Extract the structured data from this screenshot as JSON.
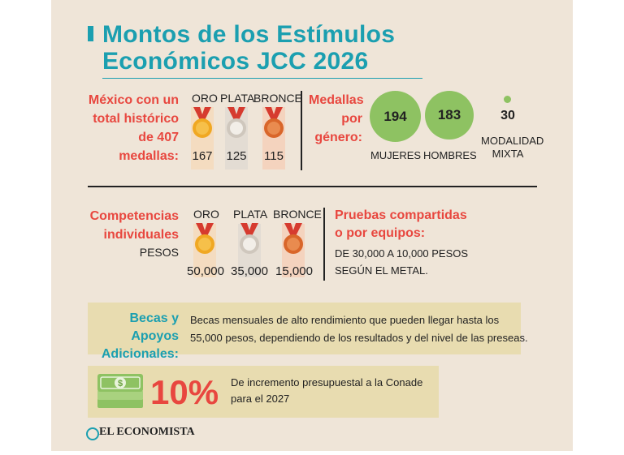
{
  "title": {
    "line1": "Montos de los Estímulos",
    "line2": "Económicos JCC 2026"
  },
  "medals_summary": {
    "intro": [
      "México con un",
      "total histórico",
      "de 407",
      "medallas:"
    ],
    "columns": [
      {
        "label": "ORO",
        "count": "167",
        "color": "#f0a823"
      },
      {
        "label": "PLATA",
        "count": "125",
        "color": "#d9d2c9"
      },
      {
        "label": "BRONCE",
        "count": "115",
        "color": "#e07a3c"
      }
    ]
  },
  "gender": {
    "heading": [
      "Medallas",
      "por",
      "género:"
    ],
    "women": {
      "value": "194",
      "label": "MUJERES"
    },
    "men": {
      "value": "183",
      "label": "HOMBRES"
    },
    "mixed": {
      "value": "30",
      "label_line1": "MODALIDAD",
      "label_line2": "MIXTA"
    },
    "circle_color": "#8ec262"
  },
  "individual": {
    "heading": [
      "Competencias",
      "individuales"
    ],
    "unit": "PESOS",
    "columns": [
      {
        "label": "ORO",
        "amount": "50,000"
      },
      {
        "label": "PLATA",
        "amount": "35,000"
      },
      {
        "label": "BRONCE",
        "amount": "15,000"
      }
    ]
  },
  "team": {
    "heading": [
      "Pruebas compartidas",
      "o por equipos:"
    ],
    "text": [
      "DE 30,000 A 10,000 PESOS",
      "SEGÚN EL METAL."
    ]
  },
  "scholarships": {
    "heading": [
      "Becas y Apoyos",
      "Adicionales:"
    ],
    "text": [
      "Becas mensuales de alto rendimiento que pueden llegar hasta los",
      "55,000 pesos, dependiendo de los resultados y del nivel de las preseas."
    ]
  },
  "budget": {
    "percent": "10%",
    "text": [
      "De incremento presupuestal a la Conade",
      "para el 2027"
    ],
    "icon": "money-bills-icon"
  },
  "brand": {
    "name": "EL ECONOMISTA"
  },
  "colors": {
    "accent_blue": "#1b9fb0",
    "accent_red": "#e8473f",
    "card": "#efe5d8",
    "box": "#e8dcb0"
  }
}
